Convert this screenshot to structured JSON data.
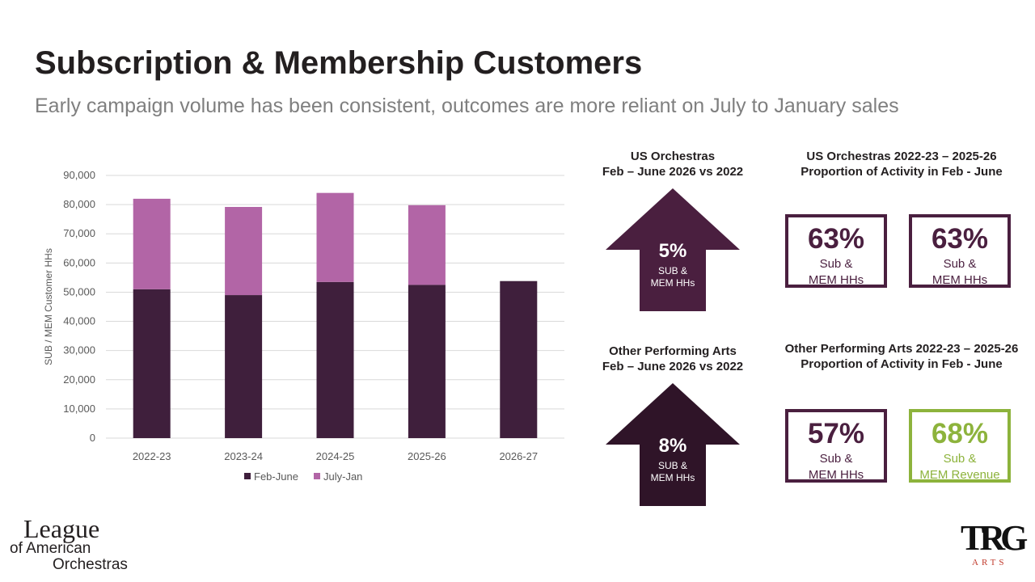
{
  "header": {
    "title": "Subscription & Membership Customers",
    "subtitle": "Early campaign volume has been consistent, outcomes are more reliant on July to January sales"
  },
  "colors": {
    "feb_june": "#3f1f3c",
    "july_jan": "#b265a6",
    "box_border": "#4a1f3f",
    "green": "#8db33c"
  },
  "chart_data": {
    "type": "bar",
    "stacked": true,
    "categories": [
      "2022-23",
      "2023-24",
      "2024-25",
      "2025-26",
      "2026-27"
    ],
    "series": [
      {
        "name": "Feb-June",
        "values": [
          51000,
          49000,
          53500,
          52500,
          53800
        ],
        "color": "#3f1f3c"
      },
      {
        "name": "July-Jan",
        "values": [
          31000,
          30200,
          30500,
          27300,
          0
        ],
        "color": "#b265a6"
      }
    ],
    "ylabel": "SUB / MEM Customer HHs",
    "xlabel": "",
    "ylim": [
      0,
      90000
    ],
    "yticks": [
      0,
      10000,
      20000,
      30000,
      40000,
      50000,
      60000,
      70000,
      80000,
      90000
    ],
    "ytick_labels": [
      "0",
      "10,000",
      "20,000",
      "30,000",
      "40,000",
      "50,000",
      "60,000",
      "70,000",
      "80,000",
      "90,000"
    ],
    "grid": true,
    "legend": "bottom"
  },
  "kpis": {
    "us_orch": {
      "heading_1": "US Orchestras",
      "heading_2": "Feb – June 2026 vs 2022",
      "value": "5%",
      "label_1": "SUB &",
      "label_2": "MEM HHs"
    },
    "us_orch_prop": {
      "heading_1": "US Orchestras 2022-23 – 2025-26",
      "heading_2": "Proportion of Activity in Feb - June",
      "box1": {
        "value": "63%",
        "label_1": "Sub &",
        "label_2": "MEM HHs"
      },
      "box2": {
        "value": "63%",
        "label_1": "Sub &",
        "label_2": "MEM HHs"
      }
    },
    "other_arts": {
      "heading_1": "Other Performing Arts",
      "heading_2": "Feb – June 2026 vs 2022",
      "value": "8%",
      "label_1": "SUB &",
      "label_2": "MEM HHs"
    },
    "other_arts_prop": {
      "heading_1": "Other Performing Arts 2022-23 – 2025-26",
      "heading_2": "Proportion of Activity in Feb - June",
      "box1": {
        "value": "57%",
        "label_1": "Sub &",
        "label_2": "MEM HHs"
      },
      "box2": {
        "value": "68%",
        "label_1": "Sub &",
        "label_2": "MEM Revenue"
      }
    }
  },
  "logos": {
    "left_line1": "League",
    "left_line2": "of American",
    "left_line3": "Orchestras",
    "right_mark": "TRG",
    "right_sub": "ARTS"
  }
}
